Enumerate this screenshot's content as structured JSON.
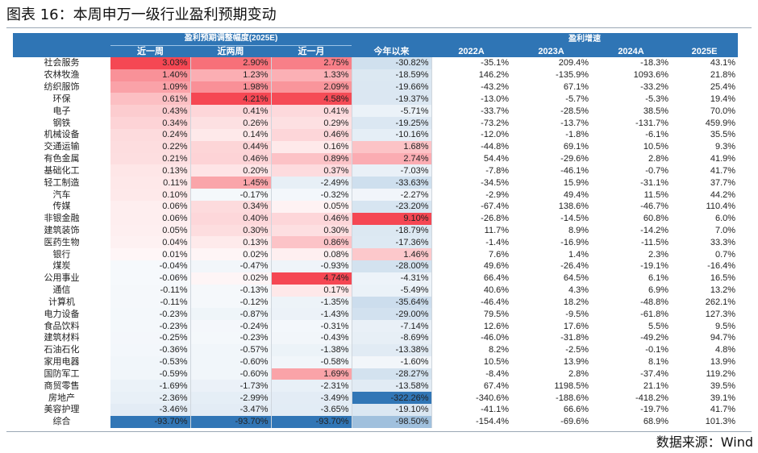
{
  "figure": {
    "title": "图表 16：本周申万一级行业盈利预期变动",
    "source": "数据来源：Wind"
  },
  "header": {
    "group_revision": "盈利预期调整幅度(2025E)",
    "group_growth": "盈利增速",
    "columns": [
      "近一周",
      "近两周",
      "近一月",
      "今年以来",
      "2022A",
      "2023A",
      "2024A",
      "2025E"
    ]
  },
  "colors": {
    "header_bg": "#2f75b5",
    "positive_scale": "#f5434f",
    "negative_scale": "#2f75b5"
  },
  "table": {
    "rows": [
      {
        "industry": "社会服务",
        "values": [
          "3.03%",
          "2.90%",
          "2.75%",
          "-30.82%",
          "-35.1%",
          "209.4%",
          "-18.3%",
          "43.1%"
        ]
      },
      {
        "industry": "农林牧渔",
        "values": [
          "1.40%",
          "1.23%",
          "1.33%",
          "-18.59%",
          "146.2%",
          "-135.9%",
          "1093.6%",
          "21.8%"
        ]
      },
      {
        "industry": "纺织服饰",
        "values": [
          "1.09%",
          "1.98%",
          "2.09%",
          "-19.66%",
          "-43.2%",
          "67.1%",
          "-33.2%",
          "25.4%"
        ]
      },
      {
        "industry": "环保",
        "values": [
          "0.61%",
          "4.21%",
          "4.58%",
          "-19.37%",
          "-13.0%",
          "-5.7%",
          "-5.3%",
          "19.4%"
        ]
      },
      {
        "industry": "电子",
        "values": [
          "0.43%",
          "0.41%",
          "0.41%",
          "-5.71%",
          "-33.7%",
          "-28.5%",
          "38.5%",
          "70.0%"
        ]
      },
      {
        "industry": "钢铁",
        "values": [
          "0.34%",
          "0.26%",
          "0.29%",
          "-19.25%",
          "-73.2%",
          "-13.7%",
          "-131.7%",
          "459.9%"
        ]
      },
      {
        "industry": "机械设备",
        "values": [
          "0.24%",
          "0.14%",
          "0.46%",
          "-10.16%",
          "-12.0%",
          "-1.8%",
          "-6.1%",
          "35.5%"
        ]
      },
      {
        "industry": "交通运输",
        "values": [
          "0.22%",
          "0.44%",
          "0.16%",
          "1.68%",
          "-44.8%",
          "69.1%",
          "10.5%",
          "9.3%"
        ]
      },
      {
        "industry": "有色金属",
        "values": [
          "0.21%",
          "0.46%",
          "0.89%",
          "2.74%",
          "54.4%",
          "-29.6%",
          "2.8%",
          "41.9%"
        ]
      },
      {
        "industry": "基础化工",
        "values": [
          "0.13%",
          "0.20%",
          "0.37%",
          "-7.03%",
          "-7.8%",
          "-46.1%",
          "-0.7%",
          "41.7%"
        ]
      },
      {
        "industry": "轻工制造",
        "values": [
          "0.11%",
          "1.45%",
          "-2.49%",
          "-33.63%",
          "-34.5%",
          "15.9%",
          "-31.1%",
          "37.7%"
        ]
      },
      {
        "industry": "汽车",
        "values": [
          "0.10%",
          "-0.17%",
          "-0.32%",
          "-2.27%",
          "-2.9%",
          "49.4%",
          "11.5%",
          "44.2%"
        ]
      },
      {
        "industry": "传媒",
        "values": [
          "0.06%",
          "0.34%",
          "0.05%",
          "-23.20%",
          "-67.4%",
          "138.6%",
          "-46.7%",
          "110.4%"
        ]
      },
      {
        "industry": "非银金融",
        "values": [
          "0.06%",
          "0.40%",
          "0.46%",
          "9.10%",
          "-26.8%",
          "-14.5%",
          "60.8%",
          "6.0%"
        ]
      },
      {
        "industry": "建筑装饰",
        "values": [
          "0.05%",
          "0.30%",
          "0.30%",
          "-18.79%",
          "11.7%",
          "8.9%",
          "-14.2%",
          "7.0%"
        ]
      },
      {
        "industry": "医药生物",
        "values": [
          "0.04%",
          "0.13%",
          "0.86%",
          "-17.36%",
          "-1.4%",
          "-16.9%",
          "-11.5%",
          "33.3%"
        ]
      },
      {
        "industry": "银行",
        "values": [
          "0.01%",
          "0.02%",
          "0.08%",
          "1.46%",
          "7.6%",
          "1.4%",
          "2.3%",
          "0.7%"
        ]
      },
      {
        "industry": "煤炭",
        "values": [
          "-0.04%",
          "-0.47%",
          "-0.93%",
          "-28.00%",
          "49.6%",
          "-26.4%",
          "-19.1%",
          "-16.4%"
        ]
      },
      {
        "industry": "公用事业",
        "values": [
          "-0.06%",
          "0.02%",
          "4.74%",
          "-4.31%",
          "66.4%",
          "64.5%",
          "6.1%",
          "16.5%"
        ]
      },
      {
        "industry": "通信",
        "values": [
          "-0.11%",
          "-0.13%",
          "0.17%",
          "-5.49%",
          "40.6%",
          "4.3%",
          "6.9%",
          "13.2%"
        ]
      },
      {
        "industry": "计算机",
        "values": [
          "-0.11%",
          "-0.12%",
          "-1.35%",
          "-35.64%",
          "-46.4%",
          "18.2%",
          "-48.8%",
          "262.1%"
        ]
      },
      {
        "industry": "电力设备",
        "values": [
          "-0.23%",
          "-0.87%",
          "-1.43%",
          "-29.00%",
          "79.5%",
          "-9.5%",
          "-61.8%",
          "127.3%"
        ]
      },
      {
        "industry": "食品饮料",
        "values": [
          "-0.23%",
          "-0.24%",
          "-0.31%",
          "-7.14%",
          "12.6%",
          "17.6%",
          "5.5%",
          "9.5%"
        ]
      },
      {
        "industry": "建筑材料",
        "values": [
          "-0.25%",
          "-0.23%",
          "-0.43%",
          "-8.69%",
          "-46.0%",
          "-31.8%",
          "-49.2%",
          "94.7%"
        ]
      },
      {
        "industry": "石油石化",
        "values": [
          "-0.36%",
          "-0.57%",
          "-1.38%",
          "-13.38%",
          "8.2%",
          "-2.5%",
          "-0.1%",
          "4.8%"
        ]
      },
      {
        "industry": "家用电器",
        "values": [
          "-0.53%",
          "-0.60%",
          "-0.58%",
          "-1.60%",
          "10.5%",
          "13.9%",
          "8.1%",
          "13.9%"
        ]
      },
      {
        "industry": "国防军工",
        "values": [
          "-0.59%",
          "-0.60%",
          "1.69%",
          "-28.27%",
          "-8.4%",
          "2.8%",
          "-37.4%",
          "119.2%"
        ]
      },
      {
        "industry": "商贸零售",
        "values": [
          "-1.69%",
          "-1.73%",
          "-2.31%",
          "-13.58%",
          "67.4%",
          "1198.5%",
          "21.1%",
          "39.5%"
        ]
      },
      {
        "industry": "房地产",
        "values": [
          "-2.36%",
          "-2.99%",
          "-3.49%",
          "-322.26%",
          "-340.6%",
          "-188.6%",
          "-418.2%",
          "39.1%"
        ]
      },
      {
        "industry": "美容护理",
        "values": [
          "-3.46%",
          "-3.47%",
          "-3.65%",
          "-19.10%",
          "-41.1%",
          "66.6%",
          "-19.7%",
          "41.7%"
        ]
      },
      {
        "industry": "综合",
        "values": [
          "-93.70%",
          "-93.70%",
          "-93.70%",
          "-98.50%",
          "-154.4%",
          "-69.6%",
          "68.9%",
          "101.3%"
        ]
      }
    ]
  }
}
